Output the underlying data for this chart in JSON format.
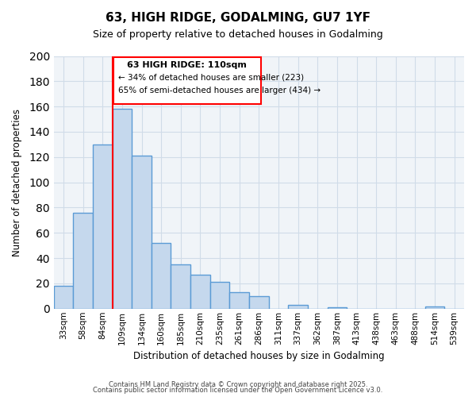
{
  "title": "63, HIGH RIDGE, GODALMING, GU7 1YF",
  "subtitle": "Size of property relative to detached houses in Godalming",
  "xlabel": "Distribution of detached houses by size in Godalming",
  "ylabel": "Number of detached properties",
  "bar_color": "#c5d8ed",
  "bar_edge_color": "#5b9bd5",
  "bar_edge_width": 1.0,
  "grid_color": "#d0dce8",
  "background_color": "#f0f4f8",
  "bins": [
    "33sqm",
    "58sqm",
    "84sqm",
    "109sqm",
    "134sqm",
    "160sqm",
    "185sqm",
    "210sqm",
    "235sqm",
    "261sqm",
    "286sqm",
    "311sqm",
    "337sqm",
    "362sqm",
    "387sqm",
    "413sqm",
    "438sqm",
    "463sqm",
    "488sqm",
    "514sqm",
    "539sqm"
  ],
  "values": [
    18,
    76,
    130,
    158,
    121,
    52,
    35,
    27,
    21,
    13,
    10,
    0,
    3,
    0,
    1,
    0,
    0,
    0,
    0,
    2,
    0
  ],
  "redline_bin_index": 3,
  "annotation_title": "63 HIGH RIDGE: 110sqm",
  "annotation_line1": "← 34% of detached houses are smaller (223)",
  "annotation_line2": "65% of semi-detached houses are larger (434) →",
  "ylim": [
    0,
    200
  ],
  "yticks": [
    0,
    20,
    40,
    60,
    80,
    100,
    120,
    140,
    160,
    180,
    200
  ],
  "footer1": "Contains HM Land Registry data © Crown copyright and database right 2025.",
  "footer2": "Contains public sector information licensed under the Open Government Licence v3.0."
}
